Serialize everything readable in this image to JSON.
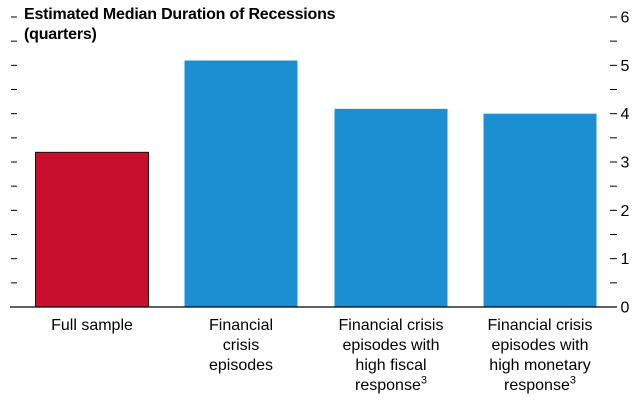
{
  "chart_data": {
    "type": "bar",
    "title": "Estimated Median Duration of Recessions",
    "subtitle": "(quarters)",
    "categories": [
      [
        "Full sample"
      ],
      [
        "Financial",
        "crisis",
        "episodes"
      ],
      [
        "Financial crisis",
        "episodes with",
        "high fiscal",
        "response"
      ],
      [
        "Financial crisis",
        "episodes with",
        "high monetary",
        "response"
      ]
    ],
    "footnote_marks": [
      "",
      "",
      "3",
      "3"
    ],
    "values": [
      3.2,
      5.1,
      4.1,
      4.0
    ],
    "colors": [
      "#c8102e",
      "#1b8fd2",
      "#1b8fd2",
      "#1b8fd2"
    ],
    "ylim": [
      0,
      6
    ],
    "yticks": [
      0,
      1,
      2,
      3,
      4,
      5,
      6
    ],
    "y_axis_side": "right",
    "grid": false
  }
}
